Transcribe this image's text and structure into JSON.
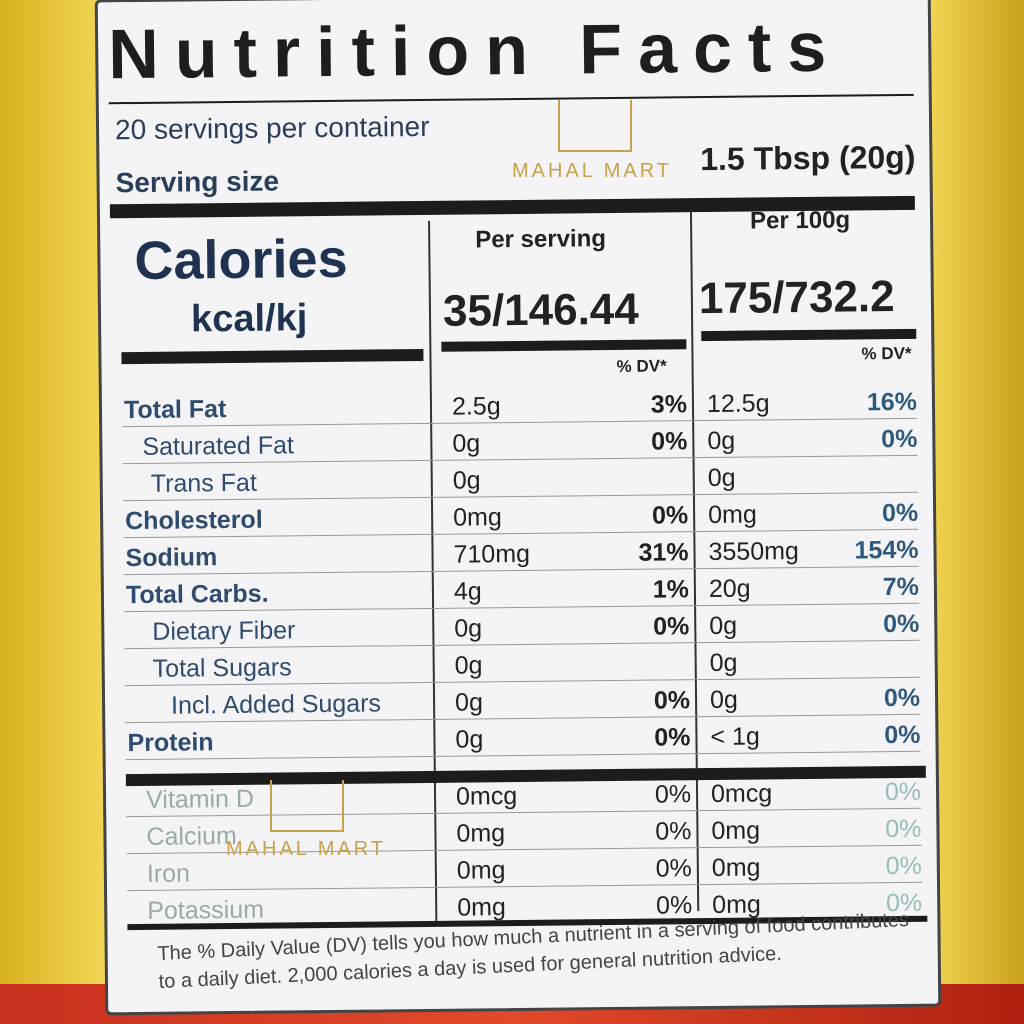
{
  "label": {
    "title": "Nutrition Facts",
    "servings": "20 servings per container",
    "serving_size_label": "Serving size",
    "serving_size_value": "1.5 Tbsp (20g)",
    "calories_label": "Calories",
    "calories_unit": "kcal/kj",
    "per_serving_header": "Per serving",
    "per_100g_header": "Per 100g",
    "calories_per_serving": "35/146.44",
    "calories_per_100g": "175/732.2",
    "dv_header": "% DV*",
    "nutrients": [
      {
        "name": "Total Fat",
        "serving": "2.5g",
        "dv": "3%",
        "per100": "12.5g",
        "dv100": "16%"
      },
      {
        "name": "Saturated Fat",
        "serving": "0g",
        "dv": "0%",
        "per100": "0g",
        "dv100": "0%"
      },
      {
        "name": "Trans Fat",
        "serving": "0g",
        "dv": "",
        "per100": "0g",
        "dv100": ""
      },
      {
        "name": "Cholesterol",
        "serving": "0mg",
        "dv": "0%",
        "per100": "0mg",
        "dv100": "0%"
      },
      {
        "name": "Sodium",
        "serving": "710mg",
        "dv": "31%",
        "per100": "3550mg",
        "dv100": "154%"
      },
      {
        "name": "Total Carbs.",
        "serving": "4g",
        "dv": "1%",
        "per100": "20g",
        "dv100": "7%"
      },
      {
        "name": "Dietary Fiber",
        "serving": "0g",
        "dv": "0%",
        "per100": "0g",
        "dv100": "0%"
      },
      {
        "name": "Total Sugars",
        "serving": "0g",
        "dv": "",
        "per100": "0g",
        "dv100": ""
      },
      {
        "name": "Incl. Added Sugars",
        "serving": "0g",
        "dv": "0%",
        "per100": "0g",
        "dv100": "0%"
      },
      {
        "name": "Protein",
        "serving": "0g",
        "dv": "0%",
        "per100": "< 1g",
        "dv100": "0%"
      }
    ],
    "vitamins": [
      {
        "name": "Vitamin D",
        "serving": "0mcg",
        "dv": "0%",
        "per100": "0mcg",
        "dv100": "0%"
      },
      {
        "name": "Calcium",
        "serving": "0mg",
        "dv": "0%",
        "per100": "0mg",
        "dv100": "0%"
      },
      {
        "name": "Iron",
        "serving": "0mg",
        "dv": "0%",
        "per100": "0mg",
        "dv100": "0%"
      },
      {
        "name": "Potassium",
        "serving": "0mg",
        "dv": "0%",
        "per100": "0mg",
        "dv100": "0%"
      }
    ],
    "footnote": "The % Daily Value (DV) tells you how much a nutrient in a serving of food contributes to a daily diet. 2,000 calories a day is used for general nutrition advice."
  },
  "watermark": "MAHAL MART",
  "colors": {
    "package_yellow": "#e9c73a",
    "package_red": "#c8301f",
    "label_text_blue": "#2f4b6e"
  }
}
